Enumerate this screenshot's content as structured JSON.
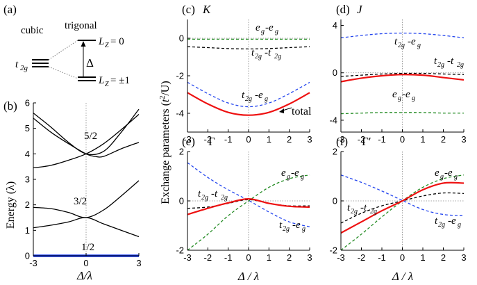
{
  "colors": {
    "red": "#ee1111",
    "blue": "#2244ee",
    "green": "#228b22",
    "black": "#000000",
    "ground": "#1133ee"
  },
  "schematic": {
    "label": "(a)",
    "cubic": "cubic",
    "trigonal": "trigonal",
    "t2g": "t",
    "t2g_sub": "2g",
    "delta": "Δ",
    "lz0": "L",
    "lz0_sub": "Z",
    "lz0_val": " = 0",
    "lz1": "L",
    "lz1_sub": "Z",
    "lz1_val": " = ±1"
  },
  "common": {
    "xlabel": "Δ / λ",
    "ylabel_main": "Exchange parameters (",
    "ylabel_t": "t",
    "ylabel_sup": "2",
    "ylabel_end": "/U)",
    "xticks": [
      "-3",
      "-2",
      "-1",
      "0",
      "1",
      "2",
      "3"
    ],
    "xticks_b": [
      "-3",
      "0",
      "3"
    ]
  },
  "chart_data": [
    {
      "panel": "b",
      "label": "(b)",
      "type": "line",
      "ylabel": "Energy (λ)",
      "xlabel": "Δ/λ",
      "xlim": [
        -3,
        3
      ],
      "ylim": [
        0,
        6
      ],
      "yticks": [
        "0",
        "1",
        "2",
        "3",
        "4",
        "5",
        "6"
      ],
      "annotations": [
        "5/2",
        "3/2",
        "1/2"
      ],
      "series": [
        {
          "name": "j=1/2",
          "color": "ground",
          "x": [
            -3,
            3
          ],
          "y": [
            0,
            0
          ]
        },
        {
          "name": "upper-1",
          "color": "black",
          "x": [
            -3,
            -2,
            -1,
            0,
            1,
            2,
            3
          ],
          "y": [
            5.6,
            5.05,
            4.45,
            4.0,
            4.1,
            4.85,
            5.75
          ]
        },
        {
          "name": "upper-2",
          "color": "black",
          "x": [
            -3,
            -2,
            -1,
            0,
            0.5,
            1,
            2,
            3
          ],
          "y": [
            5.4,
            4.85,
            4.4,
            4.0,
            3.9,
            3.9,
            4.2,
            4.45
          ]
        },
        {
          "name": "upper-3",
          "color": "black",
          "x": [
            -3,
            -2,
            -1,
            0,
            1,
            2,
            3
          ],
          "y": [
            3.45,
            3.55,
            3.75,
            4.0,
            4.4,
            4.95,
            5.55
          ]
        },
        {
          "name": "mid-1",
          "color": "black",
          "x": [
            -3,
            -2,
            -1,
            0,
            1,
            2,
            3
          ],
          "y": [
            1.9,
            1.85,
            1.7,
            1.5,
            1.8,
            2.35,
            2.95
          ]
        },
        {
          "name": "mid-2",
          "color": "black",
          "x": [
            -3,
            -2,
            -1,
            0,
            1,
            2,
            3
          ],
          "y": [
            1.1,
            1.2,
            1.33,
            1.5,
            1.25,
            1.0,
            0.75
          ]
        }
      ]
    },
    {
      "panel": "c",
      "label": "(c)",
      "title": "K",
      "type": "line",
      "xlim": [
        -3,
        3
      ],
      "ylim": [
        -5,
        1
      ],
      "yticks": [
        "-4",
        "-2",
        "0"
      ],
      "annotations": {
        "ee": "e",
        "ee_sub": "g",
        "ee_mid": "-e",
        "tt": "t",
        "tt_sub": "2g",
        "tt_mid": "-t",
        "te": "t",
        "te_sub": "2g",
        "te_mid": "-e",
        "total": "total"
      },
      "series": [
        {
          "name": "eg-eg",
          "color": "green",
          "dash": "4 3",
          "x": [
            -3,
            -2,
            -1,
            0,
            1,
            2,
            3
          ],
          "y": [
            -0.05,
            -0.05,
            -0.05,
            -0.05,
            -0.05,
            -0.05,
            -0.05
          ]
        },
        {
          "name": "t2g-t2g",
          "color": "black",
          "dash": "4 3",
          "x": [
            -3,
            -2,
            -1,
            0,
            1,
            2,
            3
          ],
          "y": [
            -0.45,
            -0.5,
            -0.55,
            -0.57,
            -0.55,
            -0.5,
            -0.45
          ]
        },
        {
          "name": "t2g-eg",
          "color": "blue",
          "dash": "4 3",
          "x": [
            -3,
            -2,
            -1,
            0,
            1,
            2,
            3
          ],
          "y": [
            -2.35,
            -2.95,
            -3.45,
            -3.65,
            -3.45,
            -2.95,
            -2.35
          ]
        },
        {
          "name": "total",
          "color": "red",
          "dash": "",
          "x": [
            -3,
            -2,
            -1,
            0,
            1,
            2,
            3
          ],
          "y": [
            -2.9,
            -3.5,
            -3.95,
            -4.1,
            -3.95,
            -3.5,
            -2.9
          ]
        }
      ]
    },
    {
      "panel": "d",
      "label": "(d)",
      "title": "J",
      "type": "line",
      "xlim": [
        -3,
        3
      ],
      "ylim": [
        -5,
        4.5
      ],
      "yticks": [
        "-4",
        "0",
        "4"
      ],
      "annotations": {
        "te": "t",
        "te_sub": "2g",
        "te_mid": "-e",
        "tt": "t",
        "tt_sub": "2g",
        "tt_mid": "-t",
        "ee": "e",
        "ee_sub": "g",
        "ee_mid": "-e"
      },
      "series": [
        {
          "name": "t2g-eg",
          "color": "blue",
          "dash": "4 3",
          "x": [
            -3,
            -2,
            -1,
            0,
            1,
            2,
            3
          ],
          "y": [
            2.95,
            3.15,
            3.3,
            3.35,
            3.3,
            3.15,
            2.95
          ]
        },
        {
          "name": "t2g-t2g",
          "color": "black",
          "dash": "4 3",
          "x": [
            -3,
            -2,
            -1,
            0,
            1,
            2,
            3
          ],
          "y": [
            -0.3,
            -0.2,
            -0.1,
            -0.05,
            -0.05,
            -0.1,
            -0.15
          ]
        },
        {
          "name": "total",
          "color": "red",
          "dash": "",
          "x": [
            -3,
            -2,
            -1,
            0,
            1,
            2,
            3
          ],
          "y": [
            -0.75,
            -0.45,
            -0.25,
            -0.15,
            -0.2,
            -0.4,
            -0.6
          ]
        },
        {
          "name": "eg-eg",
          "color": "green",
          "dash": "4 3",
          "x": [
            -3,
            -2,
            -1,
            0,
            1,
            2,
            3
          ],
          "y": [
            -3.45,
            -3.4,
            -3.35,
            -3.35,
            -3.35,
            -3.4,
            -3.4
          ]
        }
      ]
    },
    {
      "panel": "e",
      "label": "(e)",
      "title": "Γ",
      "type": "line",
      "xlim": [
        -3,
        3
      ],
      "ylim": [
        -2,
        2
      ],
      "yticks": [
        "-2",
        "0",
        "2"
      ],
      "annotations": {
        "ee": "e",
        "ee_sub": "g",
        "ee_mid": "-e",
        "tt": "t",
        "tt_sub": "2g",
        "tt_mid": "-t",
        "te": "t",
        "te_sub": "2g",
        "te_mid": "-e"
      },
      "series": [
        {
          "name": "t2g-eg",
          "color": "blue",
          "dash": "4 3",
          "x": [
            -3,
            -2,
            -1,
            0,
            1,
            2,
            3
          ],
          "y": [
            1.55,
            0.95,
            0.45,
            0.02,
            -0.45,
            -0.85,
            -1.05
          ]
        },
        {
          "name": "eg-eg",
          "color": "green",
          "dash": "4 3",
          "x": [
            -3,
            -2,
            -1,
            0,
            1,
            2,
            3
          ],
          "y": [
            -2.0,
            -1.35,
            -0.6,
            0.0,
            0.55,
            0.9,
            1.05
          ]
        },
        {
          "name": "t2g-t2g",
          "color": "black",
          "dash": "4 3",
          "x": [
            -3,
            -2,
            -1,
            0,
            1,
            2,
            3
          ],
          "y": [
            -0.3,
            -0.25,
            -0.1,
            0.05,
            -0.1,
            -0.2,
            -0.2
          ]
        },
        {
          "name": "total",
          "color": "red",
          "dash": "",
          "x": [
            -3,
            -2,
            -1,
            0,
            1,
            2,
            3
          ],
          "y": [
            -0.55,
            -0.3,
            -0.08,
            0.08,
            -0.1,
            -0.22,
            -0.25
          ]
        }
      ]
    },
    {
      "panel": "f",
      "label": "(f)",
      "title": "Γ′",
      "type": "line",
      "xlim": [
        -3,
        3
      ],
      "ylim": [
        -2,
        2
      ],
      "yticks": [
        "-2",
        "0",
        "2"
      ],
      "annotations": {
        "ee": "e",
        "ee_sub": "g",
        "ee_mid": "-e",
        "tt": "t",
        "tt_sub": "2g",
        "tt_mid": "-t",
        "te": "t",
        "te_sub": "2g",
        "te_mid": "-e"
      },
      "series": [
        {
          "name": "t2g-eg",
          "color": "blue",
          "dash": "4 3",
          "x": [
            -3,
            -2,
            -1,
            0,
            1,
            2,
            3
          ],
          "y": [
            1.05,
            0.75,
            0.4,
            0.02,
            -0.35,
            -0.55,
            -0.6
          ]
        },
        {
          "name": "eg-eg",
          "color": "green",
          "dash": "4 3",
          "x": [
            -3,
            -2,
            -1,
            0,
            1,
            2,
            3
          ],
          "y": [
            -2.0,
            -1.35,
            -0.65,
            0.0,
            0.55,
            0.9,
            1.05
          ]
        },
        {
          "name": "t2g-t2g",
          "color": "black",
          "dash": "4 3",
          "x": [
            -3,
            -2,
            -1,
            0,
            1,
            2,
            3
          ],
          "y": [
            -0.9,
            -0.5,
            -0.2,
            0.0,
            0.2,
            0.32,
            0.3
          ]
        },
        {
          "name": "total",
          "color": "red",
          "dash": "",
          "x": [
            -3,
            -2,
            -1,
            0,
            1,
            2,
            3
          ],
          "y": [
            -1.3,
            -0.85,
            -0.4,
            0.0,
            0.45,
            0.72,
            0.72
          ]
        }
      ]
    }
  ]
}
